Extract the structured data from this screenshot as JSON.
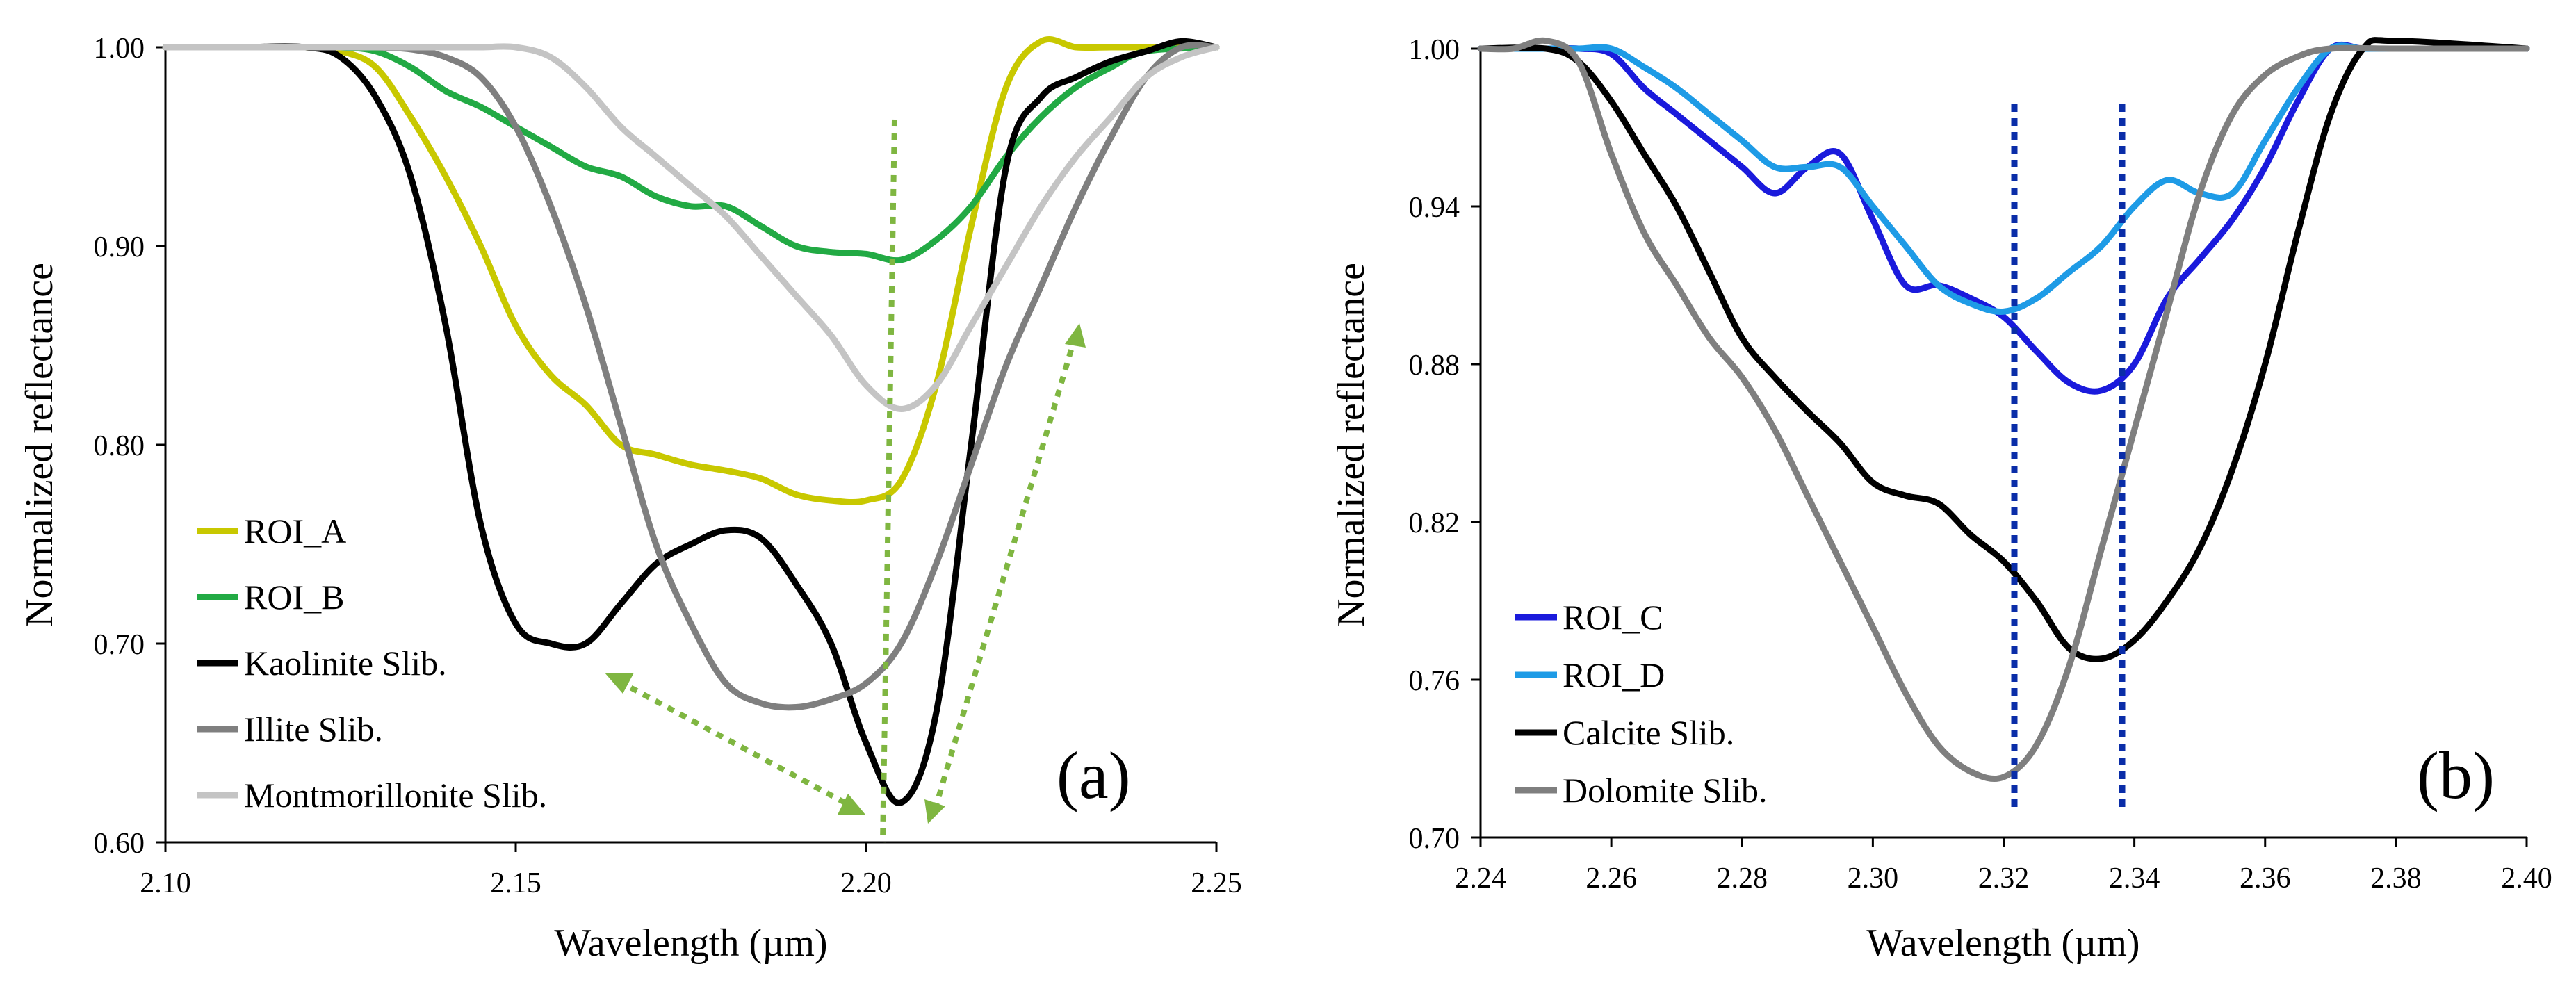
{
  "chart_data": [
    {
      "type": "line",
      "panel_label": "(a)",
      "xlabel": "Wavelength (µm)",
      "ylabel": "Normalized reflectance",
      "xlim": [
        2.1,
        2.25
      ],
      "ylim": [
        0.6,
        1.0
      ],
      "x_ticks": [
        2.1,
        2.15,
        2.2,
        2.25
      ],
      "x_tick_labels": [
        "2.10",
        "2.15",
        "2.20",
        "2.25"
      ],
      "y_ticks": [
        0.6,
        0.7,
        0.8,
        0.9,
        1.0
      ],
      "y_tick_labels": [
        "0.60",
        "0.70",
        "0.80",
        "0.90",
        "1.00"
      ],
      "legend_position": "bottom-left",
      "series": [
        {
          "name": "ROI_A",
          "color": "#c8c800",
          "x": [
            2.1,
            2.11,
            2.12,
            2.125,
            2.13,
            2.135,
            2.14,
            2.145,
            2.15,
            2.155,
            2.16,
            2.165,
            2.17,
            2.175,
            2.18,
            2.185,
            2.19,
            2.195,
            2.2,
            2.205,
            2.21,
            2.215,
            2.22,
            2.225,
            2.23,
            2.235,
            2.24,
            2.25
          ],
          "values": [
            1.0,
            1.0,
            1.0,
            0.998,
            0.99,
            0.965,
            0.935,
            0.9,
            0.86,
            0.835,
            0.82,
            0.8,
            0.795,
            0.79,
            0.787,
            0.783,
            0.775,
            0.772,
            0.772,
            0.782,
            0.83,
            0.91,
            0.98,
            1.003,
            1.0,
            1.0,
            1.0,
            1.0
          ]
        },
        {
          "name": "ROI_B",
          "color": "#22aa44",
          "x": [
            2.1,
            2.11,
            2.12,
            2.125,
            2.13,
            2.135,
            2.14,
            2.145,
            2.15,
            2.155,
            2.16,
            2.165,
            2.17,
            2.175,
            2.18,
            2.185,
            2.19,
            2.195,
            2.2,
            2.205,
            2.21,
            2.215,
            2.22,
            2.225,
            2.23,
            2.235,
            2.24,
            2.25
          ],
          "values": [
            1.0,
            1.0,
            1.0,
            1.0,
            0.998,
            0.99,
            0.978,
            0.97,
            0.96,
            0.95,
            0.94,
            0.935,
            0.925,
            0.92,
            0.92,
            0.91,
            0.9,
            0.897,
            0.896,
            0.893,
            0.903,
            0.92,
            0.945,
            0.965,
            0.98,
            0.99,
            0.998,
            1.0
          ]
        },
        {
          "name": "Kaolinite Slib.",
          "color": "#000000",
          "x": [
            2.1,
            2.11,
            2.12,
            2.125,
            2.13,
            2.135,
            2.14,
            2.145,
            2.15,
            2.155,
            2.16,
            2.165,
            2.17,
            2.175,
            2.18,
            2.185,
            2.19,
            2.195,
            2.2,
            2.205,
            2.21,
            2.215,
            2.22,
            2.225,
            2.23,
            2.235,
            2.24,
            2.245,
            2.25
          ],
          "values": [
            1.0,
            1.0,
            1.0,
            0.995,
            0.975,
            0.935,
            0.86,
            0.76,
            0.71,
            0.7,
            0.7,
            0.72,
            0.74,
            0.75,
            0.757,
            0.753,
            0.73,
            0.7,
            0.65,
            0.62,
            0.665,
            0.8,
            0.94,
            0.975,
            0.985,
            0.993,
            0.998,
            1.003,
            1.0
          ]
        },
        {
          "name": "Illite Slib.",
          "color": "#7f7f7f",
          "x": [
            2.1,
            2.11,
            2.12,
            2.125,
            2.13,
            2.135,
            2.14,
            2.145,
            2.15,
            2.155,
            2.16,
            2.165,
            2.17,
            2.175,
            2.18,
            2.185,
            2.19,
            2.195,
            2.2,
            2.205,
            2.21,
            2.215,
            2.22,
            2.225,
            2.23,
            2.235,
            2.24,
            2.245,
            2.25
          ],
          "values": [
            1.0,
            1.0,
            1.0,
            1.0,
            1.0,
            0.999,
            0.995,
            0.985,
            0.96,
            0.92,
            0.87,
            0.81,
            0.75,
            0.71,
            0.68,
            0.67,
            0.668,
            0.672,
            0.68,
            0.7,
            0.74,
            0.79,
            0.84,
            0.88,
            0.92,
            0.955,
            0.985,
            1.0,
            1.0
          ]
        },
        {
          "name": "Montmorillonite Slib.",
          "color": "#c4c4c4",
          "x": [
            2.1,
            2.11,
            2.12,
            2.125,
            2.13,
            2.135,
            2.14,
            2.145,
            2.15,
            2.155,
            2.16,
            2.165,
            2.17,
            2.175,
            2.18,
            2.185,
            2.19,
            2.195,
            2.2,
            2.205,
            2.21,
            2.215,
            2.22,
            2.225,
            2.23,
            2.235,
            2.24,
            2.245,
            2.25
          ],
          "values": [
            1.0,
            1.0,
            1.0,
            1.0,
            1.0,
            1.0,
            1.0,
            1.0,
            1.0,
            0.995,
            0.98,
            0.96,
            0.945,
            0.93,
            0.915,
            0.895,
            0.875,
            0.855,
            0.83,
            0.818,
            0.83,
            0.86,
            0.89,
            0.92,
            0.945,
            0.965,
            0.985,
            0.995,
            1.0
          ]
        }
      ]
    },
    {
      "type": "line",
      "panel_label": "(b)",
      "xlabel": "Wavelength (µm)",
      "ylabel": "Normalized reflectance",
      "xlim": [
        2.24,
        2.4
      ],
      "ylim": [
        0.7,
        1.0
      ],
      "x_ticks": [
        2.24,
        2.26,
        2.28,
        2.3,
        2.32,
        2.34,
        2.36,
        2.38,
        2.4
      ],
      "x_tick_labels": [
        "2.24",
        "2.26",
        "2.28",
        "2.30",
        "2.32",
        "2.34",
        "2.36",
        "2.38",
        "2.40"
      ],
      "y_ticks": [
        0.7,
        0.76,
        0.82,
        0.88,
        0.94,
        1.0
      ],
      "y_tick_labels": [
        "0.70",
        "0.76",
        "0.82",
        "0.88",
        "0.94",
        "1.00"
      ],
      "legend_position": "bottom-left",
      "series": [
        {
          "name": "ROI_C",
          "color": "#1a1adc",
          "x": [
            2.24,
            2.25,
            2.255,
            2.26,
            2.265,
            2.27,
            2.275,
            2.28,
            2.285,
            2.29,
            2.295,
            2.3,
            2.305,
            2.31,
            2.315,
            2.32,
            2.325,
            2.33,
            2.335,
            2.34,
            2.345,
            2.35,
            2.355,
            2.36,
            2.365,
            2.37,
            2.375,
            2.38,
            2.4
          ],
          "values": [
            1.0,
            1.0,
            1.0,
            0.998,
            0.985,
            0.975,
            0.965,
            0.955,
            0.945,
            0.955,
            0.96,
            0.935,
            0.91,
            0.91,
            0.905,
            0.898,
            0.885,
            0.873,
            0.87,
            0.88,
            0.905,
            0.92,
            0.935,
            0.955,
            0.98,
            1.0,
            1.0,
            1.0,
            1.0
          ]
        },
        {
          "name": "ROI_D",
          "color": "#1e9be6",
          "x": [
            2.24,
            2.25,
            2.255,
            2.26,
            2.265,
            2.27,
            2.275,
            2.28,
            2.285,
            2.29,
            2.295,
            2.3,
            2.305,
            2.31,
            2.315,
            2.32,
            2.325,
            2.33,
            2.335,
            2.34,
            2.345,
            2.35,
            2.355,
            2.36,
            2.365,
            2.37,
            2.375,
            2.38,
            2.4
          ],
          "values": [
            1.0,
            1.0,
            1.0,
            1.0,
            0.993,
            0.985,
            0.975,
            0.965,
            0.955,
            0.955,
            0.955,
            0.94,
            0.925,
            0.91,
            0.903,
            0.9,
            0.905,
            0.915,
            0.925,
            0.94,
            0.95,
            0.945,
            0.945,
            0.965,
            0.985,
            1.0,
            1.0,
            1.0,
            1.0
          ]
        },
        {
          "name": "Calcite Slib.",
          "color": "#000000",
          "x": [
            2.24,
            2.25,
            2.255,
            2.26,
            2.265,
            2.27,
            2.275,
            2.28,
            2.285,
            2.29,
            2.295,
            2.3,
            2.305,
            2.31,
            2.315,
            2.32,
            2.325,
            2.33,
            2.335,
            2.34,
            2.345,
            2.35,
            2.355,
            2.36,
            2.365,
            2.37,
            2.375,
            2.38,
            2.4
          ],
          "values": [
            1.0,
            1.0,
            0.995,
            0.98,
            0.96,
            0.94,
            0.915,
            0.89,
            0.875,
            0.862,
            0.85,
            0.835,
            0.83,
            0.827,
            0.815,
            0.805,
            0.79,
            0.772,
            0.768,
            0.775,
            0.79,
            0.81,
            0.84,
            0.88,
            0.93,
            0.975,
            1.0,
            1.003,
            1.0
          ]
        },
        {
          "name": "Dolomite Slib.",
          "color": "#7f7f7f",
          "x": [
            2.24,
            2.245,
            2.25,
            2.255,
            2.26,
            2.265,
            2.27,
            2.275,
            2.28,
            2.285,
            2.29,
            2.295,
            2.3,
            2.305,
            2.31,
            2.315,
            2.32,
            2.325,
            2.33,
            2.335,
            2.34,
            2.345,
            2.35,
            2.355,
            2.36,
            2.365,
            2.37,
            2.38,
            2.4
          ],
          "values": [
            1.0,
            1.0,
            1.003,
            0.995,
            0.96,
            0.93,
            0.91,
            0.89,
            0.875,
            0.855,
            0.83,
            0.805,
            0.78,
            0.755,
            0.735,
            0.725,
            0.723,
            0.735,
            0.765,
            0.81,
            0.855,
            0.9,
            0.945,
            0.975,
            0.99,
            0.997,
            1.0,
            1.0,
            1.0
          ]
        }
      ]
    }
  ]
}
